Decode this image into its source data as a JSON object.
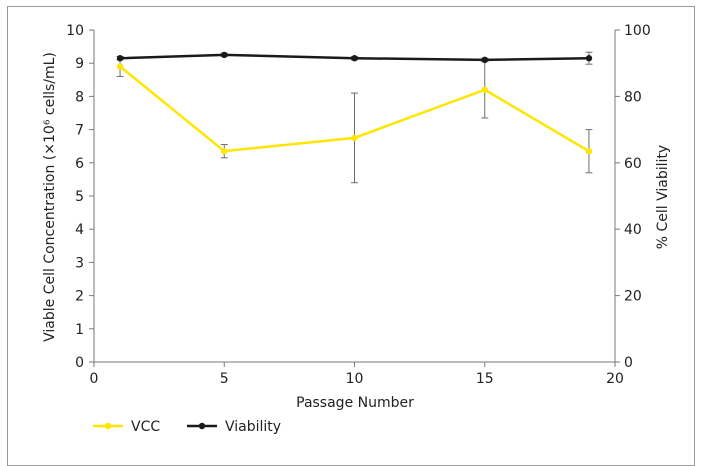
{
  "chart_data": {
    "type": "line",
    "x": [
      1,
      5,
      10,
      15,
      19
    ],
    "xlim": [
      0,
      20
    ],
    "xticks": [
      0,
      5,
      10,
      15,
      20
    ],
    "xlabel": "Passage Number",
    "ylabel_left": "Viable Cell Concentration (×10⁶ cells/mL)",
    "ylim_left": [
      0,
      10
    ],
    "yticks_left": [
      0,
      1,
      2,
      3,
      4,
      5,
      6,
      7,
      8,
      9,
      10
    ],
    "ylabel_right": "% Cell Viability",
    "ylim_right": [
      0,
      100
    ],
    "yticks_right": [
      0,
      20,
      40,
      60,
      80,
      100
    ],
    "grid": false,
    "legend_position": "bottom-left",
    "series": [
      {
        "name": "VCC",
        "axis": "left",
        "color": "#ffe600",
        "values": [
          8.9,
          6.35,
          6.75,
          8.2,
          6.35
        ],
        "error": [
          0.3,
          0.2,
          1.35,
          0.85,
          0.65
        ]
      },
      {
        "name": "Viability",
        "axis": "right",
        "color": "#1a1a1a",
        "values": [
          91.5,
          92.5,
          91.5,
          91.0,
          91.5
        ],
        "error": [
          0.5,
          0.5,
          0.5,
          0.5,
          1.8
        ]
      }
    ]
  }
}
